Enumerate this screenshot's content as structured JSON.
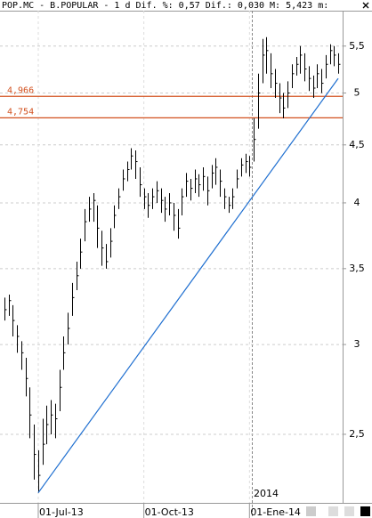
{
  "chart_data": {
    "type": "hlc",
    "title": "POP.MC - B.POPULAR -  1 d Dif. %: 0,57 Dif.: 0,030 M: 5,423 m:",
    "year_label": "2014",
    "categories": [
      null,
      null,
      null,
      null,
      null,
      null,
      null,
      null,
      "01-Jul-13",
      null,
      null,
      null,
      null,
      null,
      null,
      null,
      null,
      null,
      null,
      null,
      null,
      null,
      null,
      null,
      null,
      null,
      null,
      null,
      null,
      null,
      null,
      null,
      null,
      "01-Oct-13",
      null,
      null,
      null,
      null,
      null,
      null,
      null,
      null,
      null,
      null,
      null,
      null,
      null,
      null,
      null,
      null,
      null,
      null,
      null,
      null,
      null,
      null,
      null,
      null,
      "01-Ene-14",
      null,
      null,
      null,
      null,
      null,
      null,
      null,
      null,
      null,
      null,
      null,
      null,
      null,
      null,
      null,
      null,
      null,
      null,
      null,
      null,
      null
    ],
    "high": [
      3.3,
      3.32,
      3.25,
      3.12,
      3.02,
      2.92,
      2.75,
      2.55,
      2.42,
      2.58,
      2.65,
      2.68,
      2.66,
      2.85,
      3.05,
      3.2,
      3.4,
      3.55,
      3.72,
      3.95,
      4.05,
      4.08,
      3.98,
      3.78,
      3.68,
      3.8,
      3.98,
      4.12,
      4.28,
      4.35,
      4.47,
      4.45,
      4.3,
      4.12,
      4.08,
      4.12,
      4.18,
      4.12,
      4.05,
      4.08,
      4.0,
      3.95,
      4.12,
      4.25,
      4.2,
      4.28,
      4.24,
      4.3,
      4.22,
      4.32,
      4.38,
      4.28,
      4.12,
      4.05,
      4.12,
      4.28,
      4.38,
      4.42,
      4.4,
      4.75,
      5.2,
      5.58,
      5.6,
      5.42,
      5.25,
      5.1,
      5.0,
      5.12,
      5.3,
      5.38,
      5.5,
      5.42,
      5.28,
      5.18,
      5.3,
      5.25,
      5.4,
      5.52,
      5.5,
      5.42
    ],
    "low": [
      3.15,
      3.18,
      3.05,
      2.95,
      2.85,
      2.7,
      2.48,
      2.28,
      2.22,
      2.35,
      2.45,
      2.5,
      2.48,
      2.62,
      2.85,
      3.0,
      3.18,
      3.35,
      3.5,
      3.7,
      3.85,
      3.85,
      3.65,
      3.52,
      3.5,
      3.58,
      3.8,
      3.95,
      4.1,
      4.18,
      4.28,
      4.2,
      4.05,
      3.95,
      3.88,
      3.95,
      4.0,
      3.92,
      3.85,
      3.9,
      3.78,
      3.72,
      3.9,
      4.05,
      4.02,
      4.08,
      4.05,
      4.1,
      3.98,
      4.12,
      4.15,
      4.05,
      3.95,
      3.92,
      3.95,
      4.12,
      4.22,
      4.25,
      4.22,
      4.35,
      4.65,
      5.1,
      5.2,
      5.05,
      4.95,
      4.8,
      4.75,
      4.85,
      5.05,
      5.18,
      5.2,
      5.12,
      5.02,
      4.95,
      5.05,
      5.0,
      5.15,
      5.3,
      5.28,
      5.2
    ],
    "close": [
      3.22,
      3.28,
      3.15,
      3.05,
      2.95,
      2.8,
      2.6,
      2.4,
      2.3,
      2.45,
      2.55,
      2.6,
      2.58,
      2.75,
      2.95,
      3.1,
      3.3,
      3.45,
      3.62,
      3.85,
      3.95,
      4.02,
      3.8,
      3.65,
      3.55,
      3.7,
      3.9,
      4.05,
      4.2,
      4.28,
      4.4,
      4.35,
      4.15,
      4.05,
      3.98,
      4.05,
      4.1,
      4.02,
      3.95,
      4.0,
      3.9,
      3.8,
      4.05,
      4.18,
      4.12,
      4.2,
      4.15,
      4.22,
      4.1,
      4.25,
      4.3,
      4.18,
      4.05,
      3.98,
      4.05,
      4.2,
      4.32,
      4.35,
      4.3,
      4.55,
      5.0,
      5.4,
      5.45,
      5.2,
      5.1,
      4.95,
      4.85,
      5.0,
      5.2,
      5.3,
      5.4,
      5.25,
      5.15,
      5.05,
      5.2,
      5.1,
      5.3,
      5.45,
      5.4,
      5.3
    ],
    "color": "#000000",
    "log": true,
    "grid": true,
    "ylim": [
      2.175,
      5.91
    ],
    "yticks": [
      {
        "value": 2.5,
        "label": "2,5"
      },
      3,
      {
        "value": 3.5,
        "label": "3,5"
      },
      4,
      {
        "value": 4.5,
        "label": "4,5"
      },
      5,
      {
        "value": 5.5,
        "label": "5,5"
      }
    ],
    "hlines": [
      {
        "value": 4.966,
        "label": "4,966"
      },
      {
        "value": 4.754,
        "label": "4,754"
      }
    ],
    "hline_color": "#d2501e",
    "trendline": {
      "x": [
        8,
        79
      ],
      "values": [
        2.22,
        5.15
      ],
      "color": "#1f6fd0"
    }
  }
}
